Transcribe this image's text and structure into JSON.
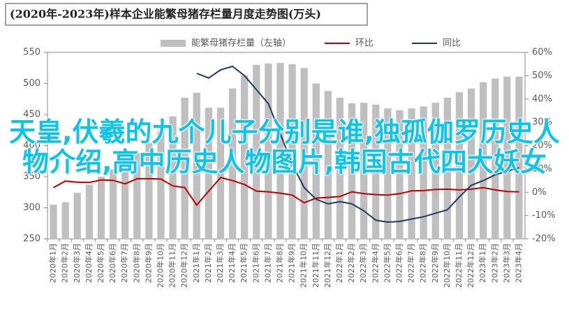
{
  "chart_data": {
    "type": "bar",
    "title": "(2020年-2023年)样本企业能繁母猪存栏量月度走势图(万头)",
    "categories": [
      "2020年1月",
      "2020年2月",
      "2020年3月",
      "2020年4月",
      "2020年5月",
      "2020年6月",
      "2020年7月",
      "2020年8月",
      "2020年9月",
      "2020年10月",
      "2020年11月",
      "2020年12月",
      "2021年1月",
      "2021年2月",
      "2021年3月",
      "2021年4月",
      "2021年5月",
      "2021年6月",
      "2021年7月",
      "2021年8月",
      "2021年9月",
      "2021年10月",
      "2021年11月",
      "2021年12月",
      "2022年1月",
      "2022年2月",
      "2022年3月",
      "2022年4月",
      "2022年5月",
      "2022年6月",
      "2022年7月",
      "2022年8月",
      "2022年9月",
      "2022年10月",
      "2022年11月",
      "2022年12月",
      "2023年1月",
      "2023年2月",
      "2023年3月",
      "2023年4月"
    ],
    "series": [
      {
        "name": "能繁母猪存栏量（左轴）",
        "type": "bar",
        "color": "#bfbfbf",
        "values": [
          305,
          309,
          324,
          337,
          350,
          362,
          374,
          388,
          404,
          423,
          447,
          477,
          485,
          461,
          461,
          492,
          513,
          530,
          532,
          533,
          531,
          525,
          500,
          488,
          477,
          468,
          469,
          466,
          460,
          457,
          460,
          463,
          469,
          477,
          486,
          492,
          502,
          508,
          511,
          511
        ]
      },
      {
        "name": "环比",
        "type": "line",
        "axis": "y2",
        "color": "#c00000",
        "values": [
          2.0,
          4.8,
          4.3,
          4.2,
          5.3,
          5.1,
          3.6,
          5.8,
          5.8,
          5.7,
          2.7,
          2.0,
          -5.5,
          0.5,
          6.3,
          5.0,
          3.3,
          0.5,
          0.2,
          -0.4,
          -1.2,
          -4.5,
          -2.5,
          -2.2,
          -1.8,
          0.2,
          -0.6,
          -1.0,
          -1.2,
          -0.6,
          0.6,
          0.7,
          1.2,
          1.3,
          1.0,
          1.3,
          2.0,
          1.0,
          0.3,
          0.2
        ]
      },
      {
        "name": "同比",
        "type": "line",
        "axis": "y2",
        "color": "#1f3864",
        "values": [
          null,
          null,
          null,
          null,
          null,
          null,
          null,
          null,
          null,
          null,
          null,
          null,
          51,
          49,
          52.5,
          54,
          50,
          44,
          38,
          25,
          12,
          2,
          -3,
          -5,
          -4,
          -5,
          -8,
          -12,
          -12.8,
          -12.5,
          -11.5,
          -10.5,
          -9,
          -7.5,
          -2,
          3,
          5,
          7.5,
          9,
          10.5
        ]
      }
    ],
    "ylim": [
      250,
      550
    ],
    "yticks": [
      250,
      300,
      350,
      400,
      450,
      500,
      550
    ],
    "y2lim": [
      -20,
      60
    ],
    "y2ticks": [
      {
        "value": -20,
        "label": "-20%"
      },
      {
        "value": -10,
        "label": "-10%"
      },
      {
        "value": 0,
        "label": "0%"
      },
      {
        "value": 10,
        "label": "10%"
      },
      {
        "value": 20,
        "label": "20%"
      },
      {
        "value": 30,
        "label": "30%"
      },
      {
        "value": 40,
        "label": "40%"
      },
      {
        "value": 50,
        "label": "50%"
      },
      {
        "value": 60,
        "label": "60%"
      }
    ],
    "grid": false
  },
  "overlay_text": "天皇,伏羲的九个儿子分别是谁,独孤伽罗历史人物介绍,高中历史人物图片,韩国古代四大妖女"
}
